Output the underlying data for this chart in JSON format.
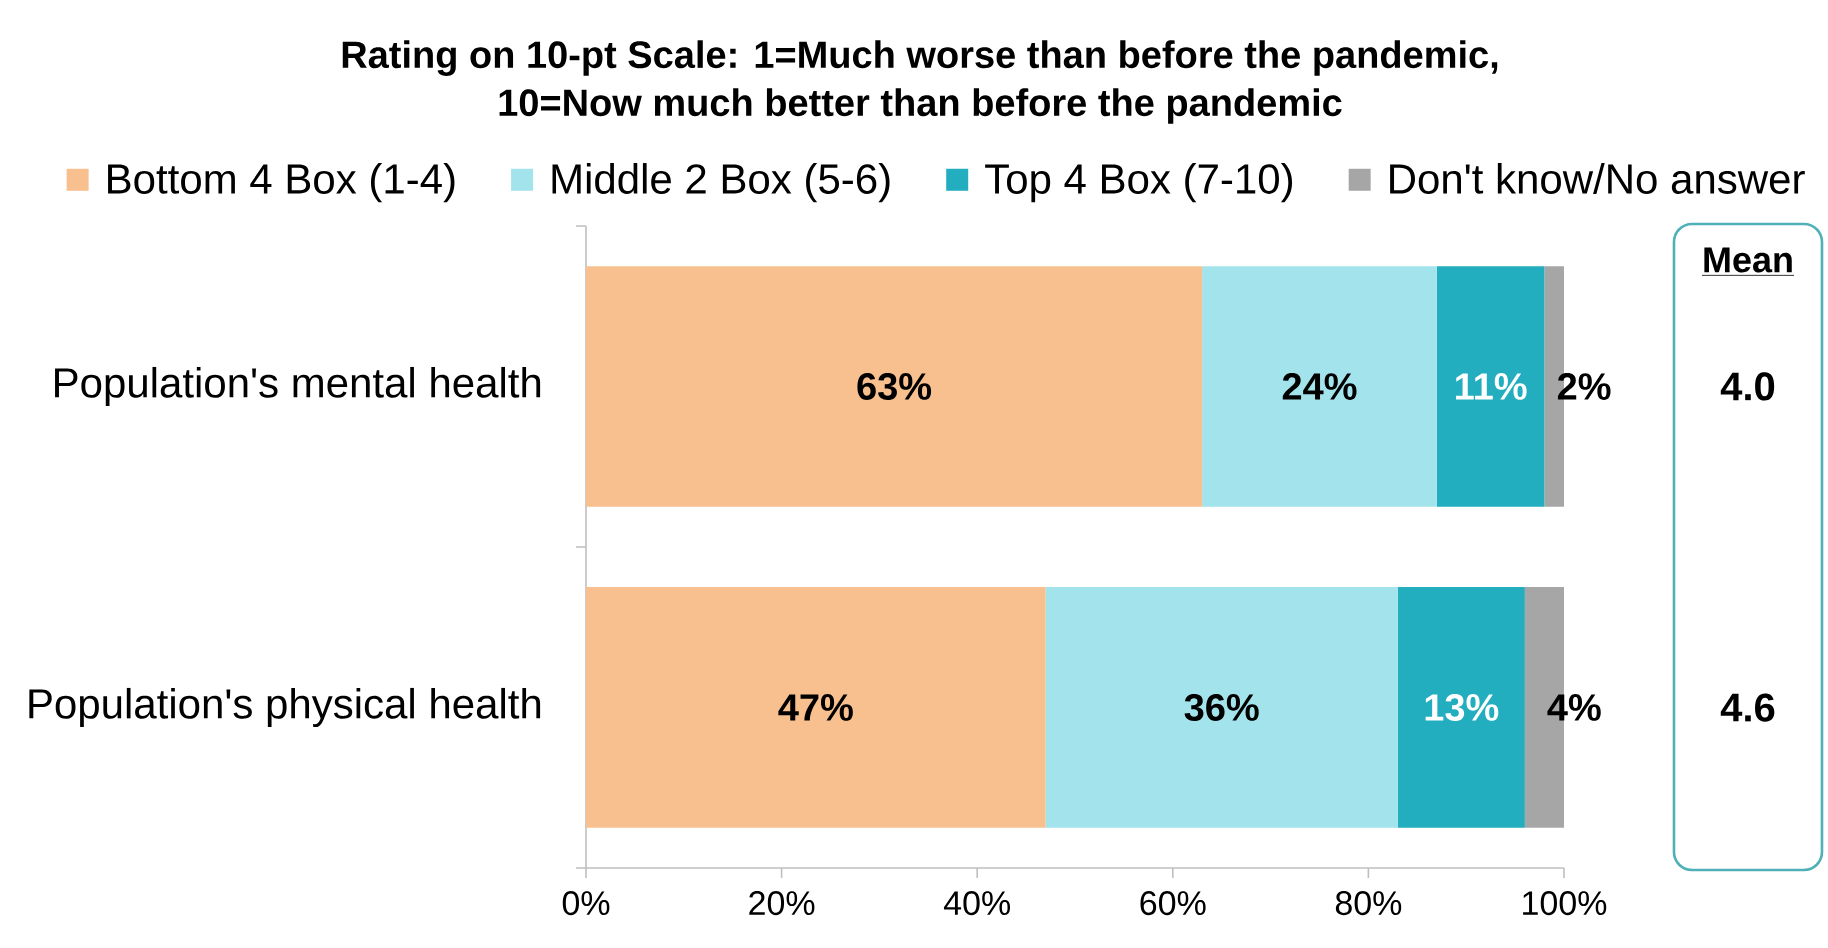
{
  "chart_data": {
    "type": "bar",
    "orientation": "horizontal",
    "stacked": true,
    "title": "Rating on 10-pt Scale: 1=Much worse than before the pandemic, 10=Now much better than before the pandemic",
    "categories": [
      "Population's mental health",
      "Population's physical health"
    ],
    "series": [
      {
        "name": "Bottom 4 Box (1-4)",
        "color": "#f8bf8f",
        "values": [
          63,
          47
        ],
        "value_labels": [
          "63%",
          "47%"
        ]
      },
      {
        "name": "Middle 2 Box (5-6)",
        "color": "#a3e3ec",
        "values": [
          24,
          36
        ],
        "value_labels": [
          "24%",
          "36%"
        ]
      },
      {
        "name": "Top 4 Box (7-10)",
        "color": "#22aebe",
        "values": [
          11,
          13
        ],
        "value_labels": [
          "11%",
          "13%"
        ]
      },
      {
        "name": "Don't know/No answer",
        "color": "#a6a6a6",
        "values": [
          2,
          4
        ],
        "value_labels": [
          "2%",
          "4%"
        ]
      }
    ],
    "xlim": [
      0,
      100
    ],
    "xticks": [
      {
        "value": 0,
        "label": "0%"
      },
      {
        "value": 20,
        "label": "20%"
      },
      {
        "value": 40,
        "label": "40%"
      },
      {
        "value": 60,
        "label": "60%"
      },
      {
        "value": 80,
        "label": "80%"
      },
      {
        "value": 100,
        "label": "100%"
      }
    ],
    "legend": "top",
    "annotations": [
      "Mean",
      "4.0",
      "4.6"
    ]
  }
}
